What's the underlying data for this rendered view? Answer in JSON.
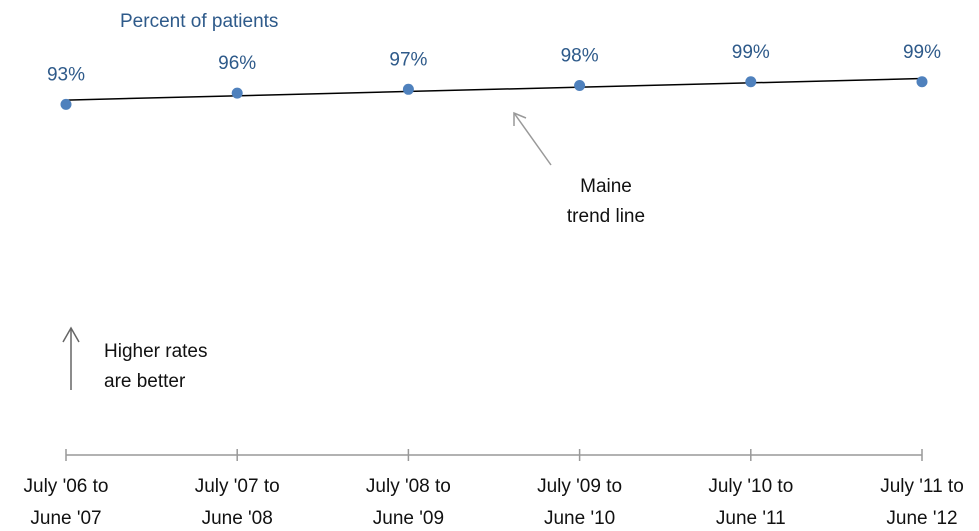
{
  "chart_data": {
    "type": "scatter",
    "y_label": "Percent of patients",
    "categories": [
      [
        "July '06 to",
        "June '07"
      ],
      [
        "July '07 to",
        "June '08"
      ],
      [
        "July '08 to",
        "June '09"
      ],
      [
        "July '09 to",
        "June '10"
      ],
      [
        "July '10 to",
        "June '11"
      ],
      [
        "July '11 to",
        "June '12"
      ]
    ],
    "values": [
      93,
      96,
      97,
      98,
      99,
      99
    ],
    "value_labels": [
      "93%",
      "96%",
      "97%",
      "98%",
      "99%",
      "99%"
    ],
    "color": "#4f81bd",
    "ylim": [
      0,
      100
    ],
    "trend_label": [
      "Maine",
      "trend line"
    ],
    "note": [
      "Higher rates",
      "are better"
    ]
  }
}
